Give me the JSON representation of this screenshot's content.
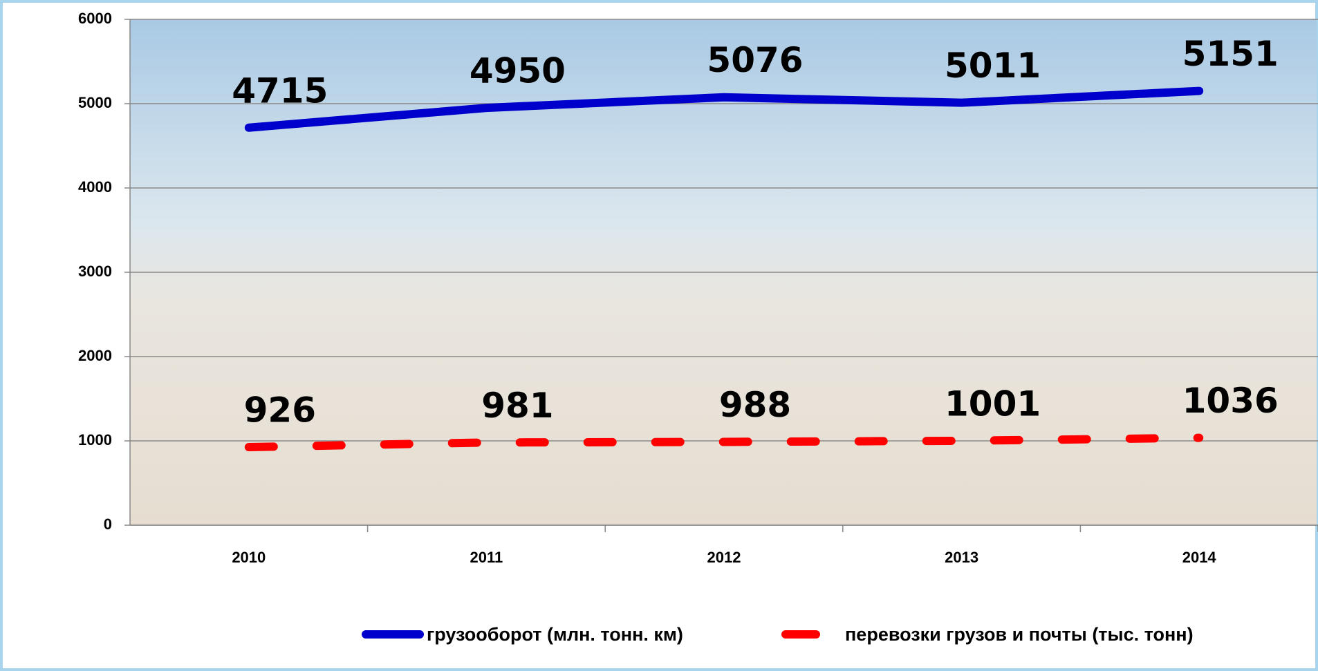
{
  "chart_data": {
    "type": "line",
    "categories": [
      "2010",
      "2011",
      "2012",
      "2013",
      "2014"
    ],
    "series": [
      {
        "name": "грузооборот (млн. тонн. км)",
        "color": "#0000cc",
        "line_style": "solid",
        "values": [
          4715,
          4950,
          5076,
          5011,
          5151
        ]
      },
      {
        "name": "перевозки грузов и почты (тыс. тонн)",
        "color": "#ff0000",
        "line_style": "dashed",
        "values": [
          926,
          981,
          988,
          1001,
          1036
        ]
      }
    ],
    "ylim": [
      0,
      6000
    ],
    "yticks": [
      0,
      1000,
      2000,
      3000,
      4000,
      5000,
      6000
    ],
    "grid": true,
    "data_labels": true,
    "legend": "bottom"
  }
}
